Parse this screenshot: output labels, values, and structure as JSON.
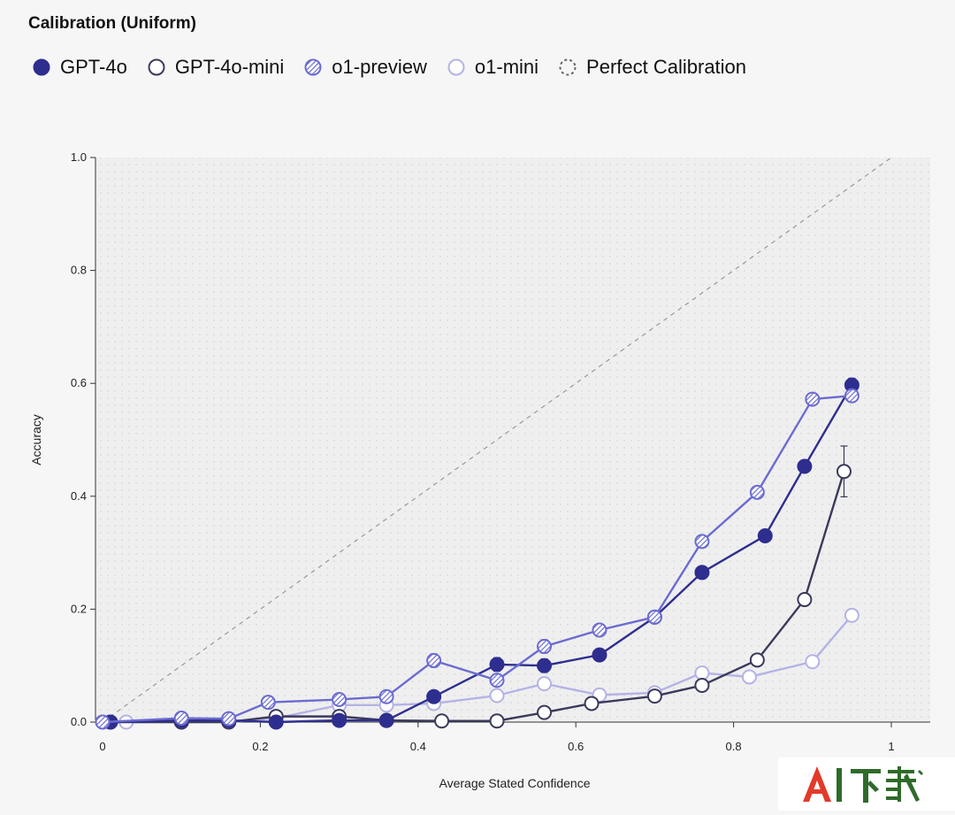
{
  "chart_data": {
    "type": "line",
    "title": "Calibration (Uniform)",
    "xlabel": "Average Stated Confidence",
    "ylabel": "Accuracy",
    "xlim": [
      0,
      1.05
    ],
    "ylim": [
      0,
      1.0
    ],
    "x_ticks": [
      0,
      0.2,
      0.4,
      0.6,
      0.8,
      1
    ],
    "x_tick_labels": [
      "0",
      "0.2",
      "0.4",
      "0.6",
      "0.8",
      "1"
    ],
    "y_ticks": [
      0,
      0.2,
      0.4,
      0.6,
      0.8,
      1.0
    ],
    "y_tick_labels": [
      "0.0",
      "0.2",
      "0.4",
      "0.6",
      "0.8",
      "1.0"
    ],
    "background": "dotted",
    "legend_position": "top-left",
    "series": [
      {
        "name": "o1-mini",
        "color": "#b3b3e6",
        "marker": "hollow",
        "x": [
          0.0,
          0.03,
          0.1,
          0.16,
          0.22,
          0.3,
          0.36,
          0.42,
          0.5,
          0.56,
          0.63,
          0.7,
          0.76,
          0.82,
          0.9,
          0.95
        ],
        "y": [
          0.0,
          0.0,
          0.0,
          0.0,
          0.007,
          0.03,
          0.03,
          0.033,
          0.047,
          0.068,
          0.048,
          0.052,
          0.087,
          0.08,
          0.107,
          0.189
        ]
      },
      {
        "name": "GPT-4o-mini",
        "color": "#3a3a5c",
        "marker": "hollow",
        "x": [
          0.01,
          0.1,
          0.16,
          0.22,
          0.3,
          0.36,
          0.43,
          0.5,
          0.56,
          0.62,
          0.7,
          0.76,
          0.83,
          0.89,
          0.94
        ],
        "y": [
          0.0,
          0.0,
          0.0,
          0.01,
          0.01,
          0.003,
          0.002,
          0.002,
          0.017,
          0.033,
          0.046,
          0.065,
          0.11,
          0.217,
          0.444
        ],
        "error": [
          0,
          0,
          0,
          0,
          0,
          0,
          0,
          0,
          0,
          0,
          0,
          0,
          0,
          0,
          0.045
        ]
      },
      {
        "name": "GPT-4o",
        "color": "#2e2e8f",
        "marker": "filled",
        "x": [
          0.01,
          0.1,
          0.16,
          0.22,
          0.3,
          0.36,
          0.42,
          0.5,
          0.56,
          0.63,
          0.7,
          0.76,
          0.84,
          0.89,
          0.95
        ],
        "y": [
          0.0,
          0.003,
          0.003,
          0.0,
          0.003,
          0.003,
          0.045,
          0.102,
          0.1,
          0.119,
          0.186,
          0.265,
          0.33,
          0.453,
          0.597
        ],
        "error": [
          0,
          0,
          0,
          0,
          0,
          0,
          0.01,
          0.012,
          0.012,
          0,
          0,
          0,
          0,
          0,
          0.012
        ]
      },
      {
        "name": "o1-preview",
        "color": "#6b6bd1",
        "marker": "hatched",
        "x": [
          0.0,
          0.1,
          0.16,
          0.21,
          0.3,
          0.36,
          0.42,
          0.5,
          0.56,
          0.63,
          0.7,
          0.76,
          0.83,
          0.9,
          0.95
        ],
        "y": [
          0.0,
          0.007,
          0.006,
          0.035,
          0.04,
          0.045,
          0.109,
          0.074,
          0.134,
          0.163,
          0.186,
          0.32,
          0.407,
          0.572,
          0.578
        ],
        "error": [
          0,
          0,
          0,
          0,
          0,
          0.01,
          0.012,
          0,
          0.012,
          0,
          0,
          0,
          0,
          0,
          0
        ]
      }
    ],
    "reference_line": {
      "name": "Perfect Calibration",
      "x": [
        0,
        1
      ],
      "y": [
        0,
        1
      ],
      "color": "#999999",
      "style": "dashed"
    }
  },
  "legend": [
    {
      "label": "GPT-4o",
      "color": "#2e2e8f",
      "marker": "filled"
    },
    {
      "label": "GPT-4o-mini",
      "color": "#3a3a5c",
      "marker": "hollow"
    },
    {
      "label": "o1-preview",
      "color": "#6b6bd1",
      "marker": "hatched"
    },
    {
      "label": "o1-mini",
      "color": "#b3b3e6",
      "marker": "hollow"
    },
    {
      "label": "Perfect Calibration",
      "color": "#666666",
      "marker": "dashed-circle"
    }
  ],
  "watermark": {
    "text": "AI下载"
  }
}
